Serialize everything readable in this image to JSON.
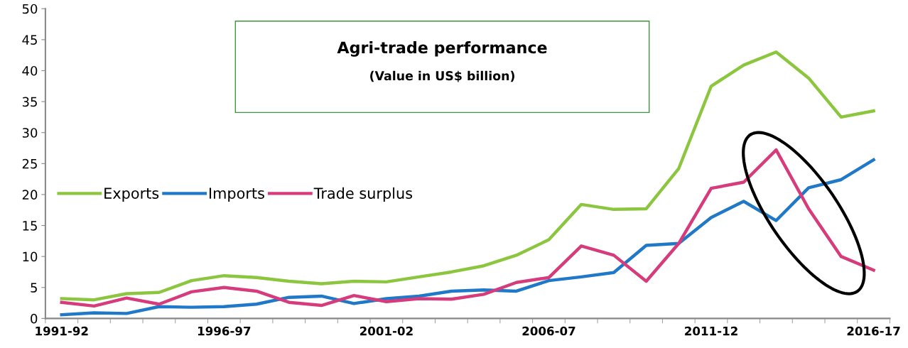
{
  "chart_data": {
    "type": "line",
    "title": "Agri-trade performance",
    "subtitle": "(Value in US$ billion)",
    "categories": [
      "1991-92",
      null,
      null,
      null,
      null,
      "1996-97",
      null,
      null,
      null,
      null,
      "2001-02",
      null,
      null,
      null,
      null,
      "2006-07",
      null,
      null,
      null,
      null,
      "2011-12",
      null,
      null,
      null,
      null,
      "2016-17"
    ],
    "series": [
      {
        "name": "Exports",
        "color": "#8cc63f",
        "values": [
          3.2,
          3.0,
          4.0,
          4.2,
          6.1,
          6.9,
          6.6,
          6.0,
          5.6,
          6.0,
          5.9,
          6.7,
          7.5,
          8.5,
          10.2,
          12.7,
          18.4,
          17.6,
          17.7,
          24.2,
          37.5,
          40.9,
          43.0,
          38.8,
          32.5,
          33.5
        ]
      },
      {
        "name": "Imports",
        "color": "#1f78c8",
        "values": [
          0.6,
          0.9,
          0.8,
          1.9,
          1.8,
          1.9,
          2.3,
          3.4,
          3.6,
          2.4,
          3.2,
          3.6,
          4.4,
          4.6,
          4.4,
          6.1,
          6.7,
          7.4,
          11.8,
          12.1,
          16.3,
          18.9,
          15.8,
          21.1,
          22.4,
          25.6
        ]
      },
      {
        "name": "Trade surplus",
        "color": "#d63c7c",
        "values": [
          2.6,
          2.0,
          3.3,
          2.3,
          4.3,
          5.0,
          4.4,
          2.6,
          2.1,
          3.7,
          2.7,
          3.2,
          3.1,
          3.9,
          5.8,
          6.6,
          11.7,
          10.2,
          6.0,
          12.1,
          21.0,
          22.0,
          27.2,
          17.7,
          10.0,
          7.8
        ]
      }
    ],
    "ylim": [
      0,
      50
    ],
    "yticks": [
      0,
      5,
      10,
      15,
      20,
      25,
      30,
      35,
      40,
      45,
      50
    ],
    "grid": false,
    "legend": "left",
    "marker": "none",
    "line_style": "solid"
  }
}
